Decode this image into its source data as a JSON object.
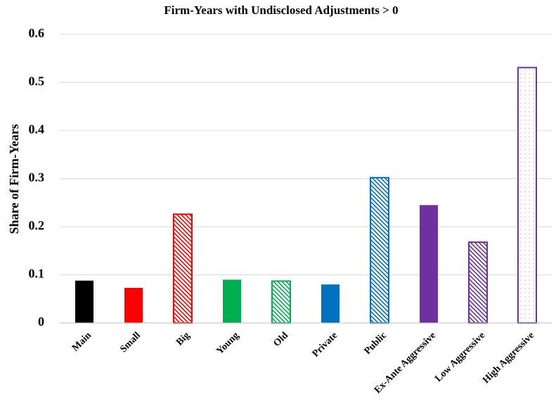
{
  "chart_data": {
    "type": "bar",
    "title": "Firm-Years with Undisclosed Adjustments > 0",
    "y_label": "Share of Firm-Years",
    "categories": [
      "Main",
      "Small",
      "Big",
      "Young",
      "Old",
      "Private",
      "Public",
      "Ex-Ante Aggressive",
      "Low Aggressive",
      "High Aggressive"
    ],
    "values": [
      0.088,
      0.073,
      0.226,
      0.09,
      0.087,
      0.08,
      0.302,
      0.245,
      0.168,
      0.531
    ],
    "colors": [
      "#000000",
      "#ff0000",
      "#ff0000",
      "#00b050",
      "#00b050",
      "#0070c0",
      "#0070c0",
      "#7030a0",
      "#7030a0",
      "#7030a0"
    ],
    "patterns": [
      "solid",
      "solid",
      "hatch",
      "solid",
      "hatch",
      "solid",
      "hatch",
      "solid",
      "hatch",
      "dots"
    ],
    "ylim": [
      0,
      0.6
    ],
    "yticks": [
      0,
      0.1,
      0.2,
      0.3,
      0.4,
      0.5,
      0.6
    ],
    "grid": true
  }
}
